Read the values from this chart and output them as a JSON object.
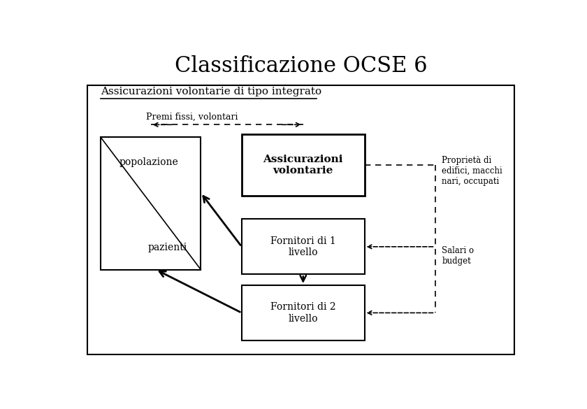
{
  "title": "Classificazione OCSE 6",
  "subtitle": "Assicurazioni volontarie di tipo integrato",
  "label_premi": "Premi fissi, volontari",
  "label_proprieta": "Proprietà di\nedifici, macchi\nnari, occupati",
  "label_salari": "Salari o\nbudget",
  "bg_color": "#ffffff",
  "border_color": "#000000"
}
